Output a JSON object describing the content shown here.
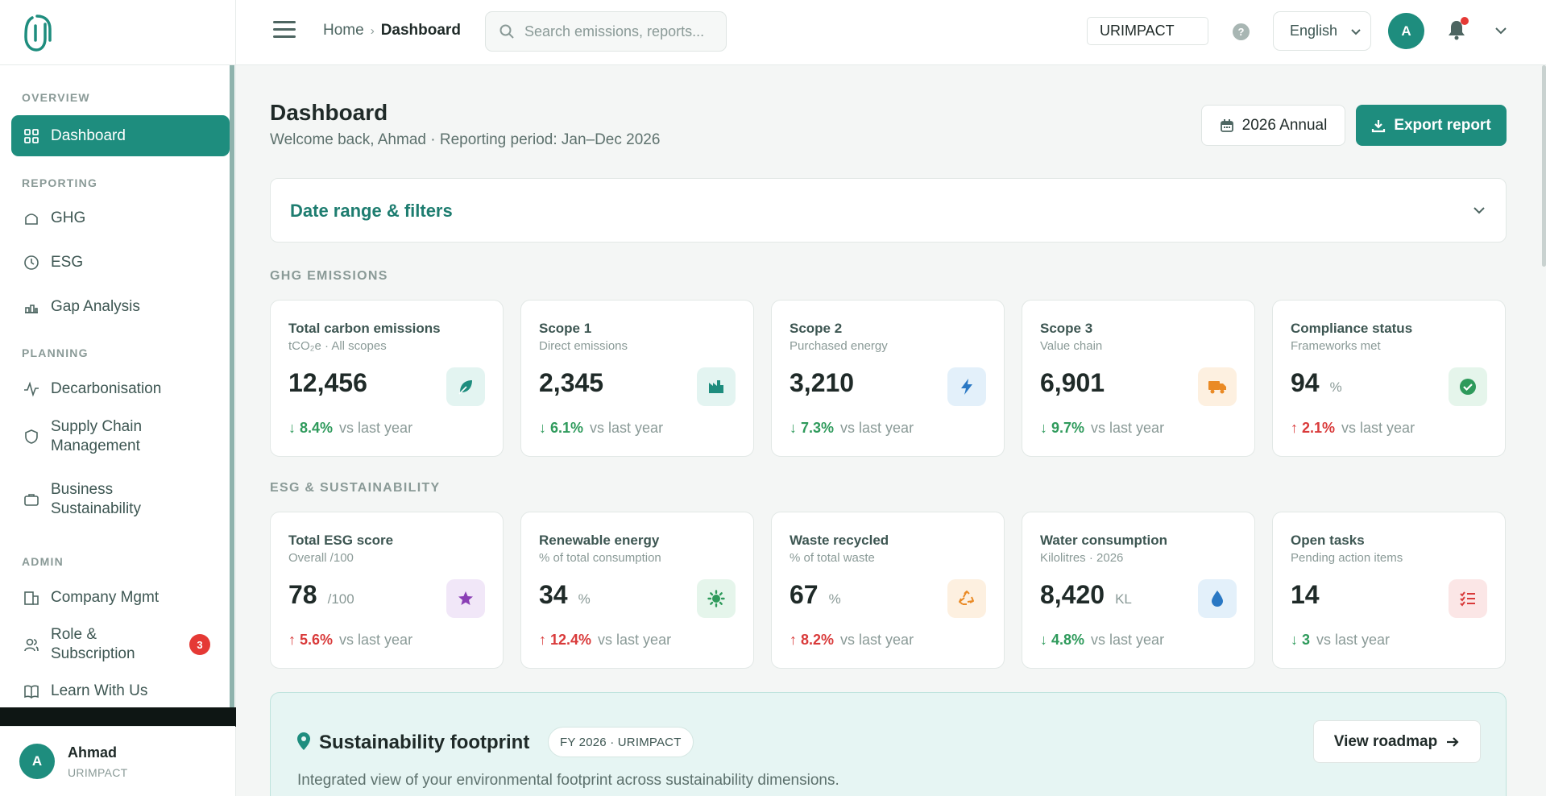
{
  "sidebar": {
    "sections": {
      "overview": "OVERVIEW",
      "reporting": "REPORTING",
      "planning": "PLANNING",
      "admin": "ADMIN"
    },
    "items": {
      "dashboard": "Dashboard",
      "ghg": "GHG",
      "esg": "ESG",
      "gap": "Gap Analysis",
      "decarb": "Decarbonisation",
      "supply_1": "Supply Chain",
      "supply_2": "Management",
      "business_1": "Business",
      "business_2": "Sustainability",
      "company": "Company Mgmt",
      "role_1": "Role &",
      "role_2": "Subscription",
      "role_badge": "3",
      "learn": "Learn With Us"
    },
    "user": {
      "initial": "A",
      "name": "Ahmad",
      "org": "URIMPACT"
    }
  },
  "topbar": {
    "breadcrumb_home": "Home",
    "breadcrumb_sep": "›",
    "breadcrumb_current": "Dashboard",
    "search_placeholder": "Search emissions, reports...",
    "org_value": "URIMPACT",
    "help": "?",
    "language": "English",
    "avatar_initial": "A"
  },
  "header": {
    "title": "Dashboard",
    "subtitle": "Welcome back, Ahmad · Reporting period: Jan–Dec 2026",
    "period_button": "2026 Annual",
    "export_button": "Export report"
  },
  "filters": {
    "title": "Date range & filters"
  },
  "ghg": {
    "label": "GHG EMISSIONS",
    "cards": [
      {
        "title": "Total carbon emissions",
        "sub": "tCO₂e · All scopes",
        "value": "12,456",
        "unit": "",
        "delta": "↓ 8.4%",
        "vs": "vs last year"
      },
      {
        "title": "Scope 1",
        "sub": "Direct emissions",
        "value": "2,345",
        "unit": "",
        "delta": "↓ 6.1%",
        "vs": "vs last year"
      },
      {
        "title": "Scope 2",
        "sub": "Purchased energy",
        "value": "3,210",
        "unit": "",
        "delta": "↓ 7.3%",
        "vs": "vs last year"
      },
      {
        "title": "Scope 3",
        "sub": "Value chain",
        "value": "6,901",
        "unit": "",
        "delta": "↓ 9.7%",
        "vs": "vs last year"
      },
      {
        "title": "Compliance status",
        "sub": "Frameworks met",
        "value": "94",
        "unit": "%",
        "delta": "↑ 2.1%",
        "vs": "vs last year"
      }
    ]
  },
  "esg": {
    "label": "ESG & SUSTAINABILITY",
    "cards": [
      {
        "title": "Total ESG score",
        "sub": "Overall /100",
        "value": "78",
        "unit": "/100",
        "delta": "↑ 5.6%",
        "vs": "vs last year"
      },
      {
        "title": "Renewable energy",
        "sub": "% of total consumption",
        "value": "34",
        "unit": "%",
        "delta": "↑ 12.4%",
        "vs": "vs last year"
      },
      {
        "title": "Waste recycled",
        "sub": "% of total waste",
        "value": "67",
        "unit": "%",
        "delta": "↑ 8.2%",
        "vs": "vs last year"
      },
      {
        "title": "Water consumption",
        "sub": "Kilolitres · 2026",
        "value": "8,420",
        "unit": "KL",
        "delta": "↓ 4.8%",
        "vs": "vs last year"
      },
      {
        "title": "Open tasks",
        "sub": "Pending action items",
        "value": "14",
        "unit": "",
        "delta": "↓ 3",
        "vs": "vs last year"
      }
    ]
  },
  "footprint": {
    "title": "Sustainability footprint",
    "tag": "FY 2026 · URIMPACT",
    "description": "Integrated view of your environmental footprint across sustainability dimensions.",
    "button": "View roadmap"
  },
  "colors": {
    "accent": "#1e8d7e",
    "positive": "#2e9a5b",
    "negative": "#d93a3a"
  }
}
